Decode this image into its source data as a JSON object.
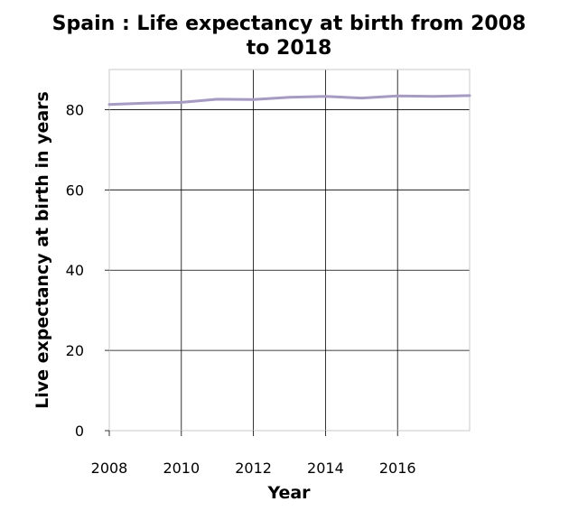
{
  "chart_data": {
    "type": "line",
    "title": "Spain : Life expectancy at birth from 2008 to 2018",
    "title_lines": [
      "Spain : Life expectancy at birth from 2008",
      "to 2018"
    ],
    "xlabel": "Year",
    "ylabel": "Live expectancy at birth in years",
    "x": [
      2008,
      2009,
      2010,
      2011,
      2012,
      2013,
      2014,
      2015,
      2016,
      2017,
      2018
    ],
    "series": [
      {
        "values": [
          81.3,
          81.6,
          81.8,
          82.6,
          82.5,
          83.1,
          83.3,
          82.9,
          83.4,
          83.3,
          83.5
        ]
      }
    ],
    "xlim": [
      2008,
      2018
    ],
    "ylim": [
      0,
      90
    ],
    "xticks": [
      2008,
      2010,
      2012,
      2014,
      2016
    ],
    "yticks": [
      0,
      20,
      40,
      60,
      80
    ],
    "grid": true,
    "legend": "none",
    "line_color": "#a79bc4"
  }
}
